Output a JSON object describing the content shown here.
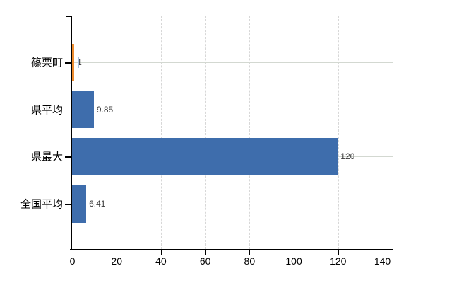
{
  "chart_data": {
    "type": "bar",
    "orientation": "horizontal",
    "categories": [
      "篠栗町",
      "県平均",
      "県最大",
      "全国平均"
    ],
    "values": [
      1,
      9.85,
      120,
      6.41
    ],
    "value_labels": [
      "1",
      "9.85",
      "120",
      "6.41"
    ],
    "series": [
      {
        "name": "value",
        "values": [
          1,
          9.85,
          120,
          6.41
        ]
      }
    ],
    "bar_colors": [
      "#ee8c2f",
      "#3e6dac",
      "#3e6dac",
      "#3e6dac"
    ],
    "xlim": [
      0,
      140
    ],
    "x_ticks": [
      0,
      20,
      40,
      60,
      80,
      100,
      120,
      140
    ],
    "x_tick_labels": [
      "0",
      "20",
      "40",
      "60",
      "80",
      "100",
      "120",
      "140"
    ],
    "grid": "on",
    "legend": "none"
  },
  "colors": {
    "highlight_bar": "#ee8c2f",
    "default_bar": "#3e6dac",
    "axis": "#000000",
    "vertical_grid": "#d7d7d7",
    "row_grid": "#d3d8d1",
    "value_label_text": "#3b3b3b",
    "tick_label_text": "#000000",
    "background": "#ffffff"
  }
}
